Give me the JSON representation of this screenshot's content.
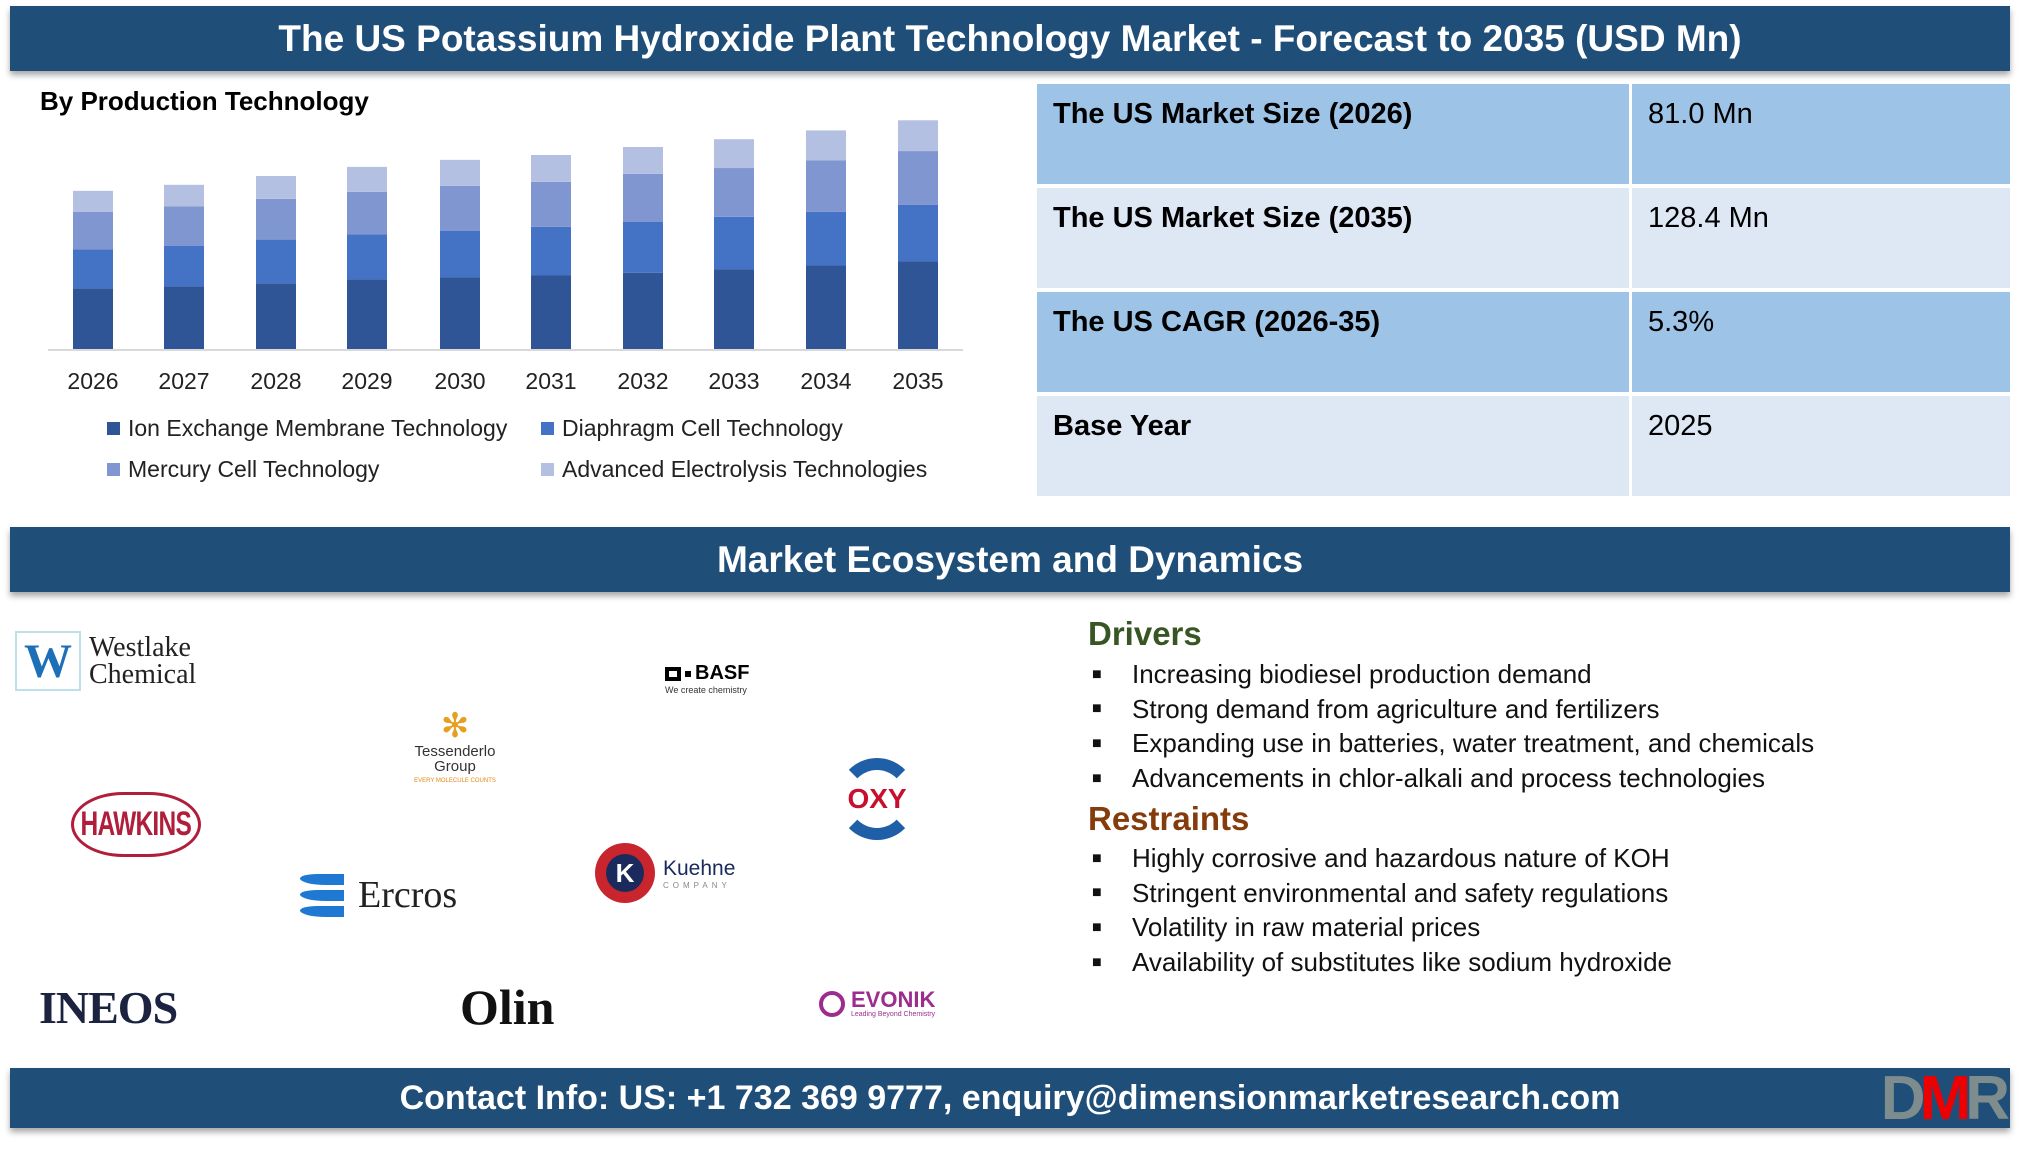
{
  "header": {
    "title": "The US Potassium Hydroxide Plant Technology Market - Forecast to 2035 (USD Mn)"
  },
  "chart_data": {
    "type": "bar",
    "stacked": true,
    "title": "By Production Technology",
    "categories": [
      "2026",
      "2027",
      "2028",
      "2029",
      "2030",
      "2031",
      "2032",
      "2033",
      "2034",
      "2035"
    ],
    "series": [
      {
        "name": "Ion Exchange Membrane Technology",
        "color": "#2f5597",
        "values": [
          31.1,
          32.1,
          33.7,
          35.7,
          36.7,
          37.7,
          39.1,
          40.8,
          42.8,
          44.9
        ]
      },
      {
        "name": "Diaphragm Cell Technology",
        "color": "#4472c4",
        "values": [
          19.9,
          20.9,
          22.4,
          23.0,
          24.0,
          25.0,
          26.2,
          27.0,
          27.5,
          29.1
        ]
      },
      {
        "name": "Mercury Cell Technology",
        "color": "#7f96d0",
        "values": [
          19.4,
          20.1,
          20.9,
          21.9,
          23.0,
          23.0,
          24.5,
          25.0,
          26.5,
          27.5
        ]
      },
      {
        "name": "Advanced Electrolysis Technologies",
        "color": "#b4c0e2",
        "values": [
          10.7,
          11.1,
          11.7,
          12.8,
          13.3,
          13.8,
          13.8,
          14.8,
          15.3,
          15.8
        ]
      }
    ],
    "grid": false,
    "legend": "bottom",
    "axis_line_color": "#d9d9d9"
  },
  "table": [
    {
      "label": "The US Market Size (2026)",
      "value": "81.0 Mn"
    },
    {
      "label": "The US Market Size (2035)",
      "value": "128.4 Mn"
    },
    {
      "label": "The US CAGR (2026-35)",
      "value": "5.3%"
    },
    {
      "label": "Base Year",
      "value": "2025"
    }
  ],
  "ecosystem": {
    "title": "Market Ecosystem and Dynamics"
  },
  "logos": {
    "westlake": [
      "Westlake",
      "Chemical"
    ],
    "basf": [
      "BASF",
      "We create chemistry"
    ],
    "tessenderlo": [
      "Tessenderlo",
      "Group",
      "EVERY MOLECULE COUNTS"
    ],
    "oxy": "OXY",
    "hawkins": "HAWKINS",
    "kuehne": [
      "Kuehne",
      "COMPANY"
    ],
    "ercros": "Ercros",
    "ineos": "INEOS",
    "olin": "Olin",
    "evonik": [
      "EVONIK",
      "Leading Beyond Chemistry"
    ]
  },
  "drivers": {
    "title": "Drivers",
    "color": "#375623",
    "items": [
      "Increasing biodiesel production demand",
      "Strong demand from agriculture and fertilizers",
      "Expanding use in batteries, water treatment, and chemicals",
      "Advancements in chlor-alkali and process technologies"
    ]
  },
  "restraints": {
    "title": "Restraints",
    "color": "#843c0c",
    "items": [
      "Highly corrosive and hazardous nature of KOH",
      "Stringent environmental and safety regulations",
      "Volatility in raw material prices",
      "Availability of substitutes like sodium hydroxide"
    ]
  },
  "footer": {
    "contact": "Contact Info: US: +1 732 369 9777, enquiry@dimensionmarketresearch.com",
    "logo": "DMR"
  }
}
